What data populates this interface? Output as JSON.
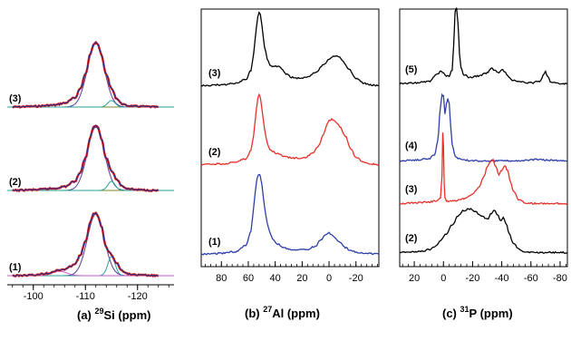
{
  "chart_data": [
    {
      "type": "line",
      "panel_label": "(a)",
      "xlabel_sup": "29",
      "xlabel": "Si (ppm)",
      "x_ticks": [
        -100,
        -110,
        -120
      ],
      "xlim": [
        -95,
        -127
      ],
      "series": [
        {
          "label": "(3)",
          "baseline_fraction": 0.0,
          "x": [
            -96,
            -100,
            -104,
            -106,
            -108,
            -109,
            -110,
            -111,
            -111.5,
            -112,
            -112.5,
            -113,
            -114,
            -115,
            -116,
            -117,
            -118,
            -120,
            -124
          ],
          "y": [
            0.0,
            0.01,
            0.03,
            0.06,
            0.14,
            0.28,
            0.5,
            0.82,
            0.96,
            1.0,
            0.95,
            0.8,
            0.5,
            0.28,
            0.13,
            0.05,
            0.02,
            0.01,
            0.0
          ]
        },
        {
          "label": "(2)",
          "baseline_fraction": 0.0,
          "x": [
            -96,
            -100,
            -104,
            -106,
            -108,
            -109,
            -110,
            -111,
            -111.5,
            -112,
            -112.5,
            -113,
            -114,
            -115,
            -116,
            -117,
            -118,
            -120,
            -124
          ],
          "y": [
            0.0,
            0.01,
            0.03,
            0.06,
            0.14,
            0.28,
            0.5,
            0.82,
            0.96,
            1.0,
            0.95,
            0.8,
            0.5,
            0.3,
            0.17,
            0.07,
            0.03,
            0.01,
            0.0
          ]
        },
        {
          "label": "(1)",
          "baseline_fraction": 0.0,
          "x": [
            -96,
            -100,
            -103,
            -104,
            -105,
            -106,
            -108,
            -109,
            -110,
            -111,
            -111.5,
            -112,
            -112.5,
            -113,
            -114,
            -114.5,
            -115,
            -116,
            -117,
            -118,
            -120,
            -124
          ],
          "y": [
            0.0,
            0.01,
            0.04,
            0.07,
            0.09,
            0.1,
            0.18,
            0.32,
            0.54,
            0.84,
            0.97,
            1.0,
            0.93,
            0.78,
            0.45,
            0.38,
            0.33,
            0.2,
            0.08,
            0.03,
            0.01,
            0.0
          ]
        }
      ]
    },
    {
      "type": "line",
      "panel_label": "(b)",
      "xlabel_sup": "27",
      "xlabel": "Al (ppm)",
      "x_ticks": [
        80,
        60,
        40,
        20,
        0,
        -20
      ],
      "xlim": [
        95,
        -37
      ],
      "series": [
        {
          "label": "(3)",
          "color": "#000000",
          "x": [
            95,
            80,
            70,
            62,
            58,
            56,
            54,
            53,
            52,
            51,
            50,
            48,
            46,
            44,
            42,
            38,
            36,
            32,
            28,
            22,
            16,
            10,
            4,
            0,
            -4,
            -6,
            -8,
            -10,
            -14,
            -20,
            -26,
            -30,
            -37
          ],
          "y": [
            0.02,
            0.03,
            0.05,
            0.1,
            0.22,
            0.45,
            0.8,
            0.95,
            1.0,
            0.97,
            0.85,
            0.55,
            0.38,
            0.3,
            0.28,
            0.28,
            0.26,
            0.18,
            0.13,
            0.12,
            0.14,
            0.2,
            0.3,
            0.38,
            0.42,
            0.42,
            0.4,
            0.36,
            0.25,
            0.12,
            0.05,
            0.03,
            0.02
          ]
        },
        {
          "label": "(2)",
          "color": "#e8302a",
          "x": [
            95,
            80,
            70,
            62,
            58,
            56,
            54,
            53,
            52,
            51,
            50,
            48,
            46,
            44,
            42,
            38,
            34,
            30,
            24,
            18,
            12,
            8,
            4,
            2,
            0,
            -2,
            -4,
            -6,
            -8,
            -12,
            -16,
            -20,
            -26,
            -30,
            -37
          ],
          "y": [
            0.02,
            0.03,
            0.05,
            0.1,
            0.22,
            0.45,
            0.8,
            0.95,
            1.0,
            0.96,
            0.82,
            0.52,
            0.32,
            0.24,
            0.2,
            0.17,
            0.14,
            0.12,
            0.11,
            0.12,
            0.18,
            0.28,
            0.45,
            0.56,
            0.64,
            0.66,
            0.64,
            0.6,
            0.55,
            0.42,
            0.25,
            0.12,
            0.05,
            0.03,
            0.02
          ]
        },
        {
          "label": "(1)",
          "color": "#2f3fa8",
          "x": [
            95,
            80,
            70,
            62,
            58,
            56,
            54,
            53,
            52,
            51,
            50,
            48,
            46,
            44,
            42,
            38,
            34,
            30,
            24,
            16,
            10,
            6,
            2,
            0,
            -2,
            -4,
            -8,
            -12,
            -16,
            -22,
            -28,
            -37
          ],
          "y": [
            0.02,
            0.03,
            0.05,
            0.12,
            0.3,
            0.6,
            0.9,
            0.98,
            1.0,
            0.97,
            0.88,
            0.6,
            0.4,
            0.28,
            0.2,
            0.14,
            0.1,
            0.08,
            0.07,
            0.08,
            0.12,
            0.2,
            0.26,
            0.28,
            0.26,
            0.22,
            0.16,
            0.1,
            0.06,
            0.04,
            0.03,
            0.02
          ]
        }
      ]
    },
    {
      "type": "line",
      "panel_label": "(c)",
      "xlabel_sup": "31",
      "xlabel": "P (ppm)",
      "x_ticks": [
        20,
        0,
        -20,
        -40,
        -60,
        -80
      ],
      "xlim": [
        30,
        -85
      ],
      "series": [
        {
          "label": "(5)",
          "color": "#000000",
          "x": [
            30,
            20,
            10,
            4,
            2,
            0,
            -2,
            -4,
            -6,
            -7,
            -8,
            -9,
            -10,
            -11,
            -12,
            -14,
            -18,
            -24,
            -30,
            -33,
            -35,
            -38,
            -40,
            -42,
            -44,
            -48,
            -54,
            -60,
            -66,
            -69,
            -70,
            -71,
            -74,
            -80,
            -85
          ],
          "y": [
            0.02,
            0.03,
            0.05,
            0.14,
            0.18,
            0.16,
            0.12,
            0.12,
            0.2,
            0.5,
            0.95,
            1.0,
            0.8,
            0.4,
            0.22,
            0.14,
            0.1,
            0.12,
            0.16,
            0.22,
            0.2,
            0.16,
            0.2,
            0.18,
            0.12,
            0.06,
            0.04,
            0.03,
            0.05,
            0.14,
            0.18,
            0.12,
            0.04,
            0.02,
            0.02
          ]
        },
        {
          "label": "(4)",
          "color": "#2f3fa8",
          "x": [
            30,
            20,
            10,
            6,
            4,
            2,
            1,
            0,
            -1,
            -2,
            -3,
            -4,
            -5,
            -6,
            -8,
            -10,
            -14,
            -20,
            -30,
            -40,
            -50,
            -60,
            -64,
            -70,
            -85
          ],
          "y": [
            0.01,
            0.02,
            0.04,
            0.1,
            0.3,
            0.8,
            0.98,
            0.96,
            0.7,
            0.85,
            0.92,
            0.85,
            0.5,
            0.25,
            0.08,
            0.04,
            0.02,
            0.01,
            0.01,
            0.01,
            0.01,
            0.02,
            0.03,
            0.02,
            0.01
          ]
        },
        {
          "label": "(3)",
          "color": "#e8302a",
          "x": [
            30,
            20,
            10,
            4,
            2,
            1,
            0.5,
            0,
            -0.5,
            -1,
            -2,
            -4,
            -8,
            -14,
            -20,
            -24,
            -28,
            -30,
            -32,
            -34,
            -36,
            -38,
            -40,
            -42,
            -44,
            -46,
            -48,
            -52,
            -56,
            -62,
            -70,
            -85
          ],
          "y": [
            0.02,
            0.03,
            0.04,
            0.06,
            0.1,
            0.4,
            1.0,
            0.8,
            0.3,
            0.1,
            0.06,
            0.05,
            0.06,
            0.09,
            0.15,
            0.24,
            0.4,
            0.52,
            0.6,
            0.62,
            0.52,
            0.42,
            0.48,
            0.54,
            0.48,
            0.32,
            0.18,
            0.07,
            0.03,
            0.02,
            0.02,
            0.02
          ]
        },
        {
          "label": "(2)",
          "color": "#000000",
          "x": [
            30,
            20,
            14,
            10,
            6,
            2,
            -2,
            -6,
            -10,
            -14,
            -18,
            -22,
            -26,
            -30,
            -33,
            -35,
            -37,
            -39,
            -41,
            -43,
            -45,
            -48,
            -52,
            -56,
            -62,
            -70,
            -85
          ],
          "y": [
            0.02,
            0.03,
            0.04,
            0.06,
            0.1,
            0.18,
            0.28,
            0.4,
            0.52,
            0.6,
            0.62,
            0.58,
            0.52,
            0.48,
            0.56,
            0.6,
            0.54,
            0.46,
            0.5,
            0.42,
            0.28,
            0.14,
            0.06,
            0.03,
            0.02,
            0.02,
            0.02
          ]
        }
      ]
    }
  ]
}
